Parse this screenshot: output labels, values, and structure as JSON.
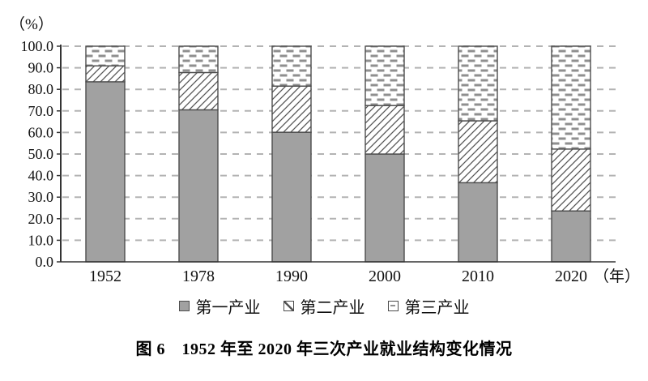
{
  "chart_data": {
    "type": "bar",
    "stacked": true,
    "categories": [
      "1952",
      "1978",
      "1990",
      "2000",
      "2010",
      "2020"
    ],
    "series": [
      {
        "name": "第一产业",
        "pattern": "solid-gray",
        "values": [
          83.5,
          70.5,
          60.1,
          50.0,
          36.7,
          23.6
        ]
      },
      {
        "name": "第二产业",
        "pattern": "diagonal-hatch",
        "values": [
          7.4,
          17.3,
          21.4,
          22.5,
          28.7,
          28.7
        ]
      },
      {
        "name": "第三产业",
        "pattern": "dash-brick",
        "values": [
          9.1,
          12.2,
          18.5,
          27.5,
          34.6,
          47.7
        ]
      }
    ],
    "ylabel": "（%）",
    "xunit": "（年）",
    "ylim": [
      0,
      100
    ],
    "yticks": [
      "0.0",
      "10.0",
      "20.0",
      "30.0",
      "40.0",
      "50.0",
      "60.0",
      "70.0",
      "80.0",
      "90.0",
      "100.0"
    ],
    "grid": true,
    "legend_position": "bottom",
    "colors": {
      "bar_fill": "#a1a1a1",
      "bar_border": "#4d4d4d",
      "hatch_line": "#555555",
      "dash_fill": "#8f8f8f",
      "gridline": "#b3b3b3",
      "axis": "#333333",
      "text": "#111111"
    }
  },
  "caption": {
    "text": "图 6　1952 年至 2020 年三次产业就业结构变化情况"
  }
}
